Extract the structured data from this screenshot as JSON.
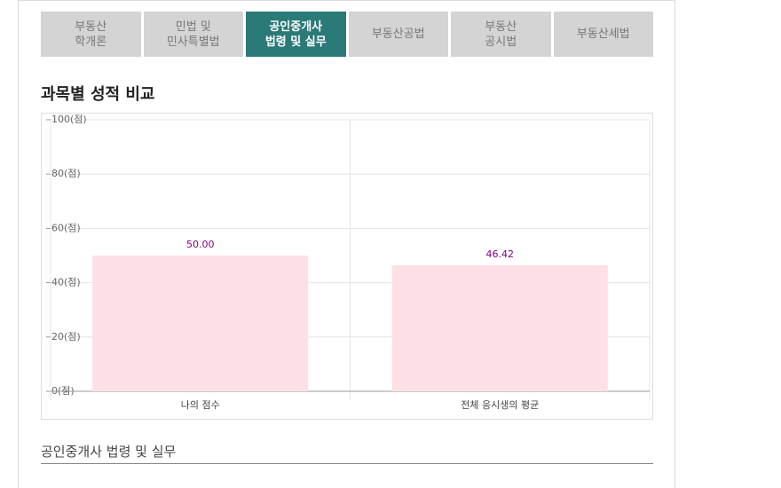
{
  "tabs": [
    {
      "lines": [
        "부동산",
        "학개론"
      ]
    },
    {
      "lines": [
        "민법 및",
        "민사특별법"
      ]
    },
    {
      "lines": [
        "공인중개사",
        "법령 및 실무"
      ],
      "active": true
    },
    {
      "lines": [
        "부동산공법"
      ]
    },
    {
      "lines": [
        "부동산",
        "공시법"
      ]
    },
    {
      "lines": [
        "부동산세법"
      ]
    }
  ],
  "section_title": "과목별 성적 비교",
  "chart_data": {
    "type": "bar",
    "categories": [
      "나의 점수",
      "전체 응시생의 평균"
    ],
    "values": [
      50,
      46.42
    ],
    "value_labels": [
      "50.00",
      "46.42"
    ],
    "color": "#fde0e6",
    "value_label_color": "#800080",
    "ylim": [
      0,
      100
    ],
    "yticks": [
      {
        "value": 0,
        "label": "0(점)"
      },
      {
        "value": 20,
        "label": "20(점)"
      },
      {
        "value": 40,
        "label": "40(점)"
      },
      {
        "value": 60,
        "label": "60(점)"
      },
      {
        "value": 80,
        "label": "80(점)"
      },
      {
        "value": 100,
        "label": "100(점)"
      }
    ],
    "grid": true
  },
  "subject_heading": "공인중개사 법령 및 실무"
}
